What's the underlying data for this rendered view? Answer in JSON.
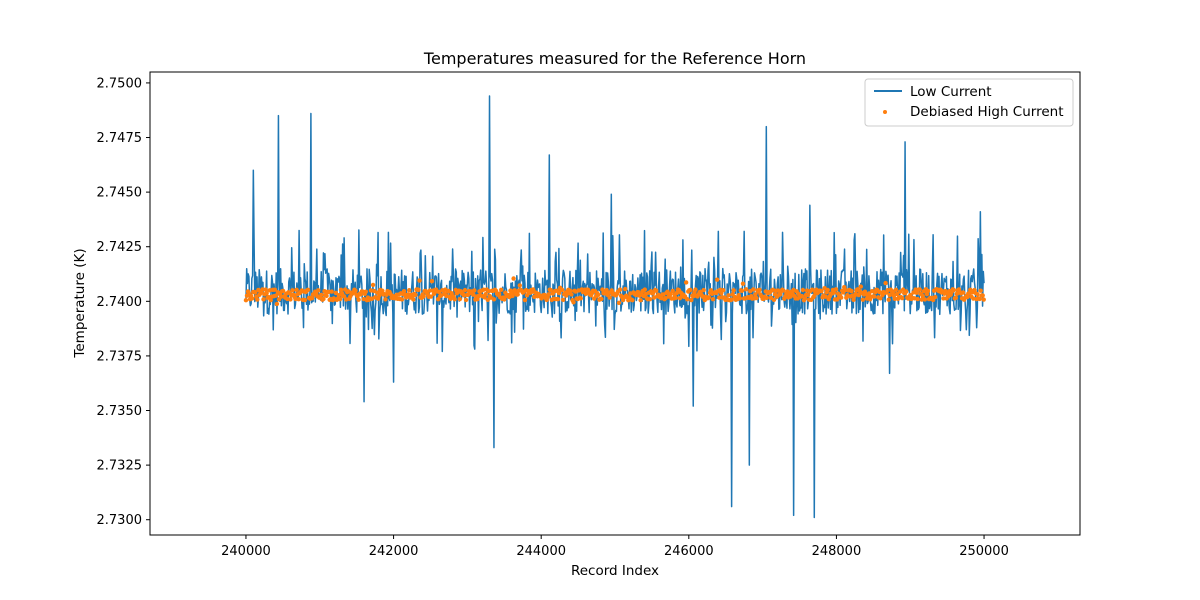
{
  "chart_data": {
    "type": "line",
    "title": "Temperatures measured for the Reference Horn",
    "xlabel": "Record Index",
    "ylabel": "Temperature (K)",
    "xlim": [
      238700,
      251300
    ],
    "ylim": [
      2.7293,
      2.7505
    ],
    "xticks": [
      240000,
      242000,
      244000,
      246000,
      248000,
      250000
    ],
    "yticks": [
      2.73,
      2.7325,
      2.735,
      2.7375,
      2.74,
      2.7425,
      2.745,
      2.7475,
      2.75
    ],
    "xtick_labels": [
      "240000",
      "242000",
      "244000",
      "246000",
      "248000",
      "250000"
    ],
    "ytick_labels": [
      "2.7300",
      "2.7325",
      "2.7350",
      "2.7375",
      "2.7400",
      "2.7425",
      "2.7450",
      "2.7475",
      "2.7500"
    ],
    "legend_position": "top-right",
    "series": [
      {
        "name": "Low Current",
        "kind": "line",
        "color": "#1f77b4",
        "x_range": [
          240000,
          250000
        ],
        "baseline": 2.7405,
        "band": [
          2.7394,
          2.7415
        ],
        "spikes": [
          {
            "x": 240100,
            "y": 2.746
          },
          {
            "x": 240440,
            "y": 2.7485
          },
          {
            "x": 240880,
            "y": 2.7486
          },
          {
            "x": 241600,
            "y": 2.7354
          },
          {
            "x": 242000,
            "y": 2.7363
          },
          {
            "x": 243300,
            "y": 2.7494
          },
          {
            "x": 243360,
            "y": 2.7333
          },
          {
            "x": 244110,
            "y": 2.7467
          },
          {
            "x": 244950,
            "y": 2.7449
          },
          {
            "x": 246060,
            "y": 2.7352
          },
          {
            "x": 246580,
            "y": 2.7306
          },
          {
            "x": 246820,
            "y": 2.7325
          },
          {
            "x": 247050,
            "y": 2.748
          },
          {
            "x": 247420,
            "y": 2.7302
          },
          {
            "x": 247640,
            "y": 2.7444
          },
          {
            "x": 247700,
            "y": 2.7301
          },
          {
            "x": 248720,
            "y": 2.7367
          },
          {
            "x": 248930,
            "y": 2.7473
          },
          {
            "x": 249950,
            "y": 2.7441
          }
        ]
      },
      {
        "name": "Debiased High Current",
        "kind": "scatter",
        "color": "#ff7f0e",
        "x_range": [
          240000,
          250000
        ],
        "baseline": 2.7403,
        "band": [
          2.7398,
          2.7411
        ]
      }
    ]
  }
}
